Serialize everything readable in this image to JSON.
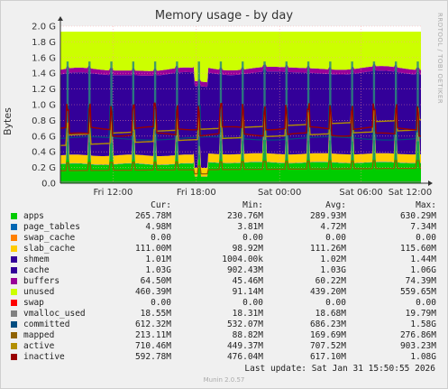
{
  "chart_data": {
    "type": "area",
    "title": "Memory usage - by day",
    "ylabel": "Bytes",
    "ylim": [
      0,
      2.0
    ],
    "yticks": [
      "0.0",
      "0.2 G",
      "0.4 G",
      "0.6 G",
      "0.8 G",
      "1.0 G",
      "1.2 G",
      "1.4 G",
      "1.6 G",
      "1.8 G",
      "2.0 G"
    ],
    "xticks": [
      {
        "label": "Fri 12:00",
        "pos": 0.146
      },
      {
        "label": "Fri 18:00",
        "pos": 0.377
      },
      {
        "label": "Sat 00:00",
        "pos": 0.608
      },
      {
        "label": "Sat 06:00",
        "pos": 0.834
      },
      {
        "label": "Sat 12:00",
        "pos": 1.065
      }
    ],
    "grid": true,
    "legend_header": {
      "cur": "Cur:",
      "min": "Min:",
      "avg": "Avg:",
      "max": "Max:"
    },
    "series": [
      {
        "name": "apps",
        "color": "#00cc00",
        "cur": "265.78M",
        "min": "230.76M",
        "avg": "289.93M",
        "max": "630.29M"
      },
      {
        "name": "page_tables",
        "color": "#0066b3",
        "cur": "4.98M",
        "min": "3.81M",
        "avg": "4.72M",
        "max": "7.34M"
      },
      {
        "name": "swap_cache",
        "color": "#ff8000",
        "cur": "0.00",
        "min": "0.00",
        "avg": "0.00",
        "max": "0.00"
      },
      {
        "name": "slab_cache",
        "color": "#ffcc00",
        "cur": "111.00M",
        "min": "98.92M",
        "avg": "111.26M",
        "max": "115.60M"
      },
      {
        "name": "shmem",
        "color": "#330099",
        "cur": "1.01M",
        "min": "1004.00k",
        "avg": "1.02M",
        "max": "1.44M"
      },
      {
        "name": "cache",
        "color": "#330099",
        "cur": "1.03G",
        "min": "902.43M",
        "avg": "1.03G",
        "max": "1.06G"
      },
      {
        "name": "buffers",
        "color": "#990099",
        "cur": "64.50M",
        "min": "45.46M",
        "avg": "60.22M",
        "max": "74.39M"
      },
      {
        "name": "unused",
        "color": "#ccff00",
        "cur": "460.39M",
        "min": "91.14M",
        "avg": "439.20M",
        "max": "559.65M"
      },
      {
        "name": "swap",
        "color": "#ff0000",
        "cur": "0.00",
        "min": "0.00",
        "avg": "0.00",
        "max": "0.00"
      },
      {
        "name": "vmalloc_used",
        "color": "#808080",
        "cur": "18.55M",
        "min": "18.31M",
        "avg": "18.68M",
        "max": "19.79M"
      },
      {
        "name": "committed",
        "color": "#004d80",
        "cur": "612.32M",
        "min": "532.07M",
        "avg": "686.23M",
        "max": "1.58G"
      },
      {
        "name": "mapped",
        "color": "#8f6200",
        "cur": "213.11M",
        "min": "88.82M",
        "avg": "169.69M",
        "max": "276.86M"
      },
      {
        "name": "active",
        "color": "#b38f00",
        "cur": "710.46M",
        "min": "449.37M",
        "avg": "707.52M",
        "max": "903.23M"
      },
      {
        "name": "inactive",
        "color": "#990000",
        "cur": "592.78M",
        "min": "476.04M",
        "avg": "617.10M",
        "max": "1.08G"
      }
    ],
    "last_update": "Last update: Sat Jan 31 15:50:55 2026",
    "footer": "Munin 2.0.57",
    "side_text": "RRDTOOL / TOBI OETIKER"
  }
}
